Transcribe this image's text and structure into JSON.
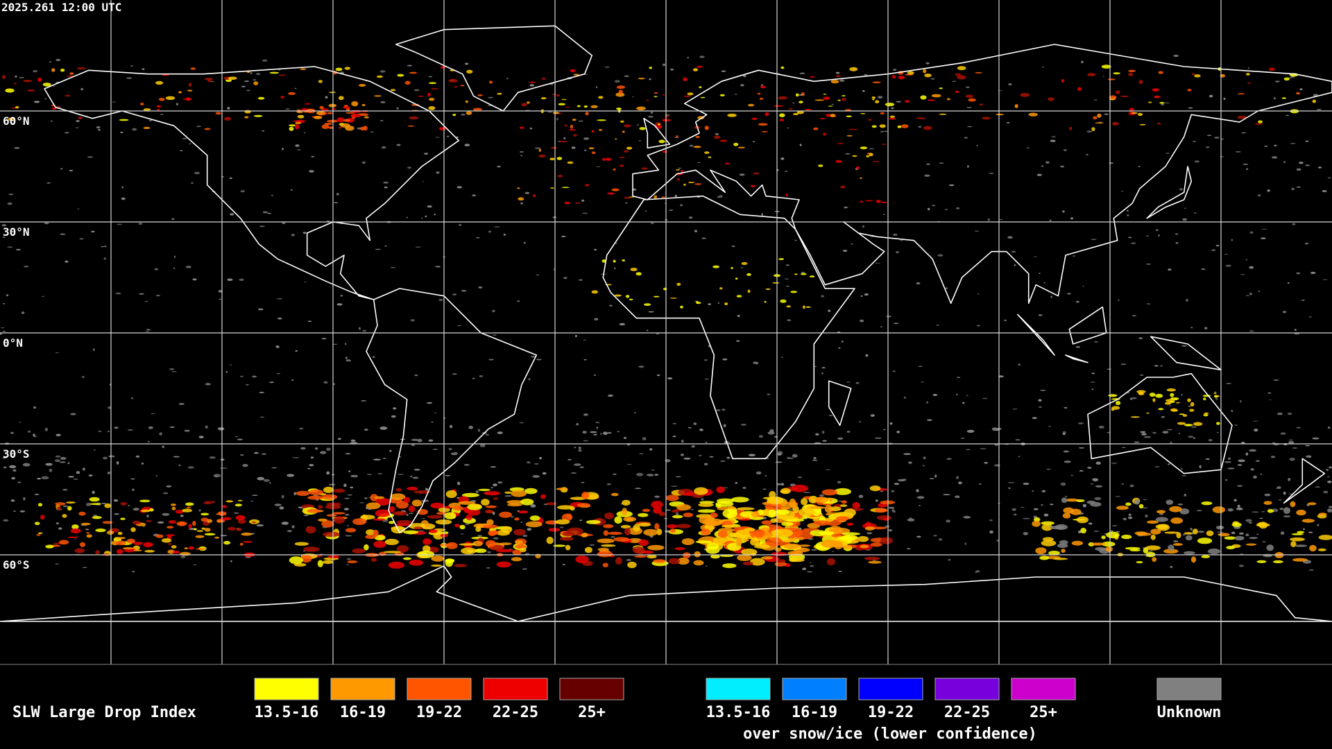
{
  "header": {
    "timestamp": "2025.261 12:00 UTC"
  },
  "map": {
    "latitude_labels": [
      "60°N",
      "30°N",
      "0°N",
      "30°S",
      "60°S"
    ]
  },
  "legend": {
    "title": "SLW Large Drop Index",
    "liquid": [
      {
        "label": "13.5-16",
        "color": "#ffff00"
      },
      {
        "label": "16-19",
        "color": "#ff9900"
      },
      {
        "label": "19-22",
        "color": "#ff5500"
      },
      {
        "label": "22-25",
        "color": "#ee0000"
      },
      {
        "label": "25+",
        "color": "#660000"
      }
    ],
    "snow_ice": [
      {
        "label": "13.5-16",
        "color": "#00eeff"
      },
      {
        "label": "16-19",
        "color": "#0080ff"
      },
      {
        "label": "19-22",
        "color": "#0000ff"
      },
      {
        "label": "22-25",
        "color": "#7700dd"
      },
      {
        "label": "25+",
        "color": "#cc00cc"
      }
    ],
    "snow_ice_note": "over snow/ice (lower confidence)",
    "unknown": {
      "label": "Unknown",
      "color": "#808080"
    }
  }
}
